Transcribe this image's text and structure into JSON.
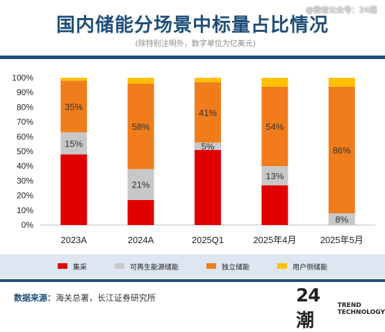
{
  "header": {
    "title": "国内储能分场景中标量占比情况",
    "subtitle": "(除特别注明外，数字单位为亿美元)",
    "watermark": "@微信公众号：24潮"
  },
  "chart_data": {
    "type": "bar",
    "stacked": true,
    "categories": [
      "2023A",
      "2024A",
      "2025Q1",
      "2025年4月",
      "2025年5月"
    ],
    "series": [
      {
        "name": "集采",
        "color": "#e00000",
        "values": [
          48,
          17,
          51,
          27,
          0
        ],
        "labels": [
          "",
          "",
          "",
          "",
          ""
        ]
      },
      {
        "name": "可再生能源储能",
        "color": "#c8c8c8",
        "values": [
          15,
          21,
          5,
          13,
          8
        ],
        "labels": [
          "15%",
          "21%",
          "5%",
          "13%",
          "8%"
        ]
      },
      {
        "name": "独立储能",
        "color": "#f07c1b",
        "values": [
          35,
          58,
          41,
          54,
          86
        ],
        "labels": [
          "35%",
          "58%",
          "41%",
          "54%",
          "86%"
        ]
      },
      {
        "name": "用户侧储能",
        "color": "#ffc000",
        "values": [
          2,
          4,
          3,
          6,
          6
        ],
        "labels": [
          "",
          "",
          "",
          "",
          ""
        ]
      }
    ],
    "y_ticks": [
      "0%",
      "10%",
      "20%",
      "30%",
      "40%",
      "50%",
      "60%",
      "70%",
      "80%",
      "90%",
      "100%"
    ],
    "ylim": [
      0,
      100
    ],
    "grid": false,
    "legend_position": "bottom"
  },
  "footer": {
    "source_label": "数据来源：",
    "source_text": "海关总署，长江证券研究所",
    "logo_mark": "24潮",
    "logo_line1": "TREND",
    "logo_line2": "TECHNOLOGY"
  }
}
